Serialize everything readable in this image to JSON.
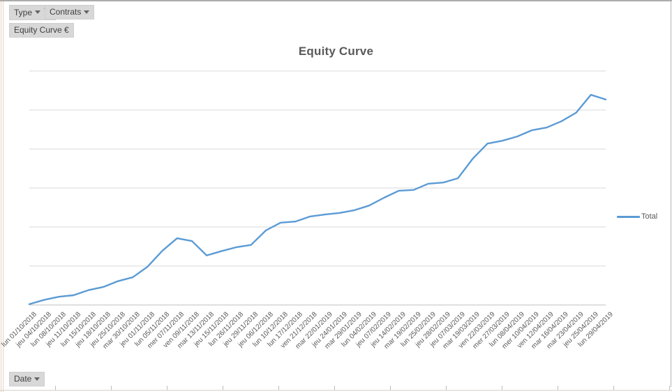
{
  "filters": {
    "type": {
      "label": "Type"
    },
    "contrats": {
      "label": "Contrats"
    }
  },
  "value_field": {
    "label": "Equity Curve €"
  },
  "axis_field": {
    "label": "Date"
  },
  "chart": {
    "title": "Equity Curve"
  },
  "legend": {
    "position": "right",
    "items": [
      {
        "label": "Total",
        "color": "#5B9BD5"
      }
    ]
  },
  "colors": {
    "series_line": "#5B9BD5",
    "gridline": "#D9D9D9",
    "axis_line": "#BFBFBF",
    "text_gray": "#595959",
    "button_bg": "#D8D8D8"
  },
  "chart_data": {
    "type": "line",
    "title": "Equity Curve",
    "categories": [
      "lun 01/10/2018",
      "jeu 04/10/2018",
      "lun 08/10/2018",
      "jeu 11/10/2018",
      "lun 15/10/2018",
      "jeu 18/10/2018",
      "jeu 25/10/2018",
      "mar 30/10/2018",
      "jeu 01/11/2018",
      "lun 05/11/2018",
      "mer 07/11/2018",
      "ven 09/11/2018",
      "mar 13/11/2018",
      "jeu 15/11/2018",
      "lun 26/11/2018",
      "jeu 29/11/2018",
      "jeu 06/12/2018",
      "lun 10/12/2018",
      "lun 17/12/2018",
      "ven 21/12/2018",
      "mar 22/01/2019",
      "jeu 24/01/2019",
      "mar 29/01/2019",
      "lun 04/02/2019",
      "jeu 07/02/2019",
      "jeu 14/02/2019",
      "mar 19/02/2019",
      "lun 25/02/2019",
      "jeu 28/02/2019",
      "jeu 07/03/2019",
      "mar 19/03/2019",
      "ven 22/03/2019",
      "mer 27/03/2019",
      "lun 08/04/2019",
      "mer 10/04/2019",
      "ven 12/04/2019",
      "mar 16/04/2019",
      "mar 23/04/2019",
      "jeu 25/04/2019",
      "lun 29/04/2019"
    ],
    "series": [
      {
        "name": "Total",
        "color": "#5B9BD5",
        "values": [
          0.02,
          0.13,
          0.21,
          0.25,
          0.38,
          0.46,
          0.61,
          0.71,
          0.98,
          1.39,
          1.71,
          1.64,
          1.27,
          1.38,
          1.48,
          1.54,
          1.91,
          2.11,
          2.14,
          2.27,
          2.32,
          2.36,
          2.43,
          2.55,
          2.75,
          2.93,
          2.95,
          3.11,
          3.14,
          3.25,
          3.75,
          4.14,
          4.21,
          4.32,
          4.48,
          4.55,
          4.71,
          4.93,
          5.39,
          5.27
        ]
      }
    ],
    "ylim": [
      0,
      6
    ],
    "y_axis_labels_visible": false,
    "gridlines": "horizontal",
    "gridline_divisions": 6,
    "legend_position": "right",
    "xlabel": "",
    "ylabel": ""
  }
}
